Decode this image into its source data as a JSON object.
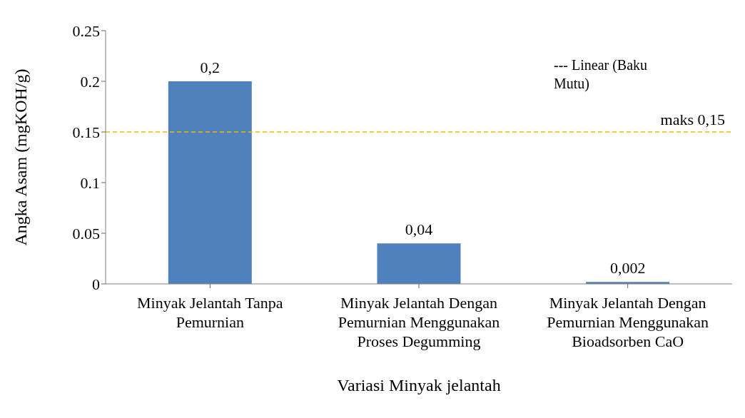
{
  "chart_data": {
    "type": "bar",
    "xlabel": "Variasi Minyak jelantah",
    "ylabel": "Angka Asam (mgKOH/g)",
    "categories": [
      "Minyak Jelantah Tanpa Pemurnian",
      "Minyak Jelantah Dengan Pemurnian Menggunakan Proses Degumming",
      "Minyak Jelantah Dengan Pemurnian Menggunakan Bioadsorben CaO"
    ],
    "values": [
      0.2,
      0.04,
      0.002
    ],
    "color": "#4f81bd",
    "value_labels": [
      "0,2",
      "0,04",
      "0,002"
    ],
    "ylim": [
      0,
      0.25
    ],
    "yticks": [
      0,
      0.05,
      0.1,
      0.15,
      0.2,
      0.25
    ],
    "grid": false,
    "ref_lines": [
      {
        "axis": "y",
        "value": 0.15,
        "label": "maks 0,15",
        "color": "#f5b800",
        "line_style": "dashed"
      }
    ],
    "annotations": [
      "--- Linear (Baku Mutu)"
    ]
  }
}
